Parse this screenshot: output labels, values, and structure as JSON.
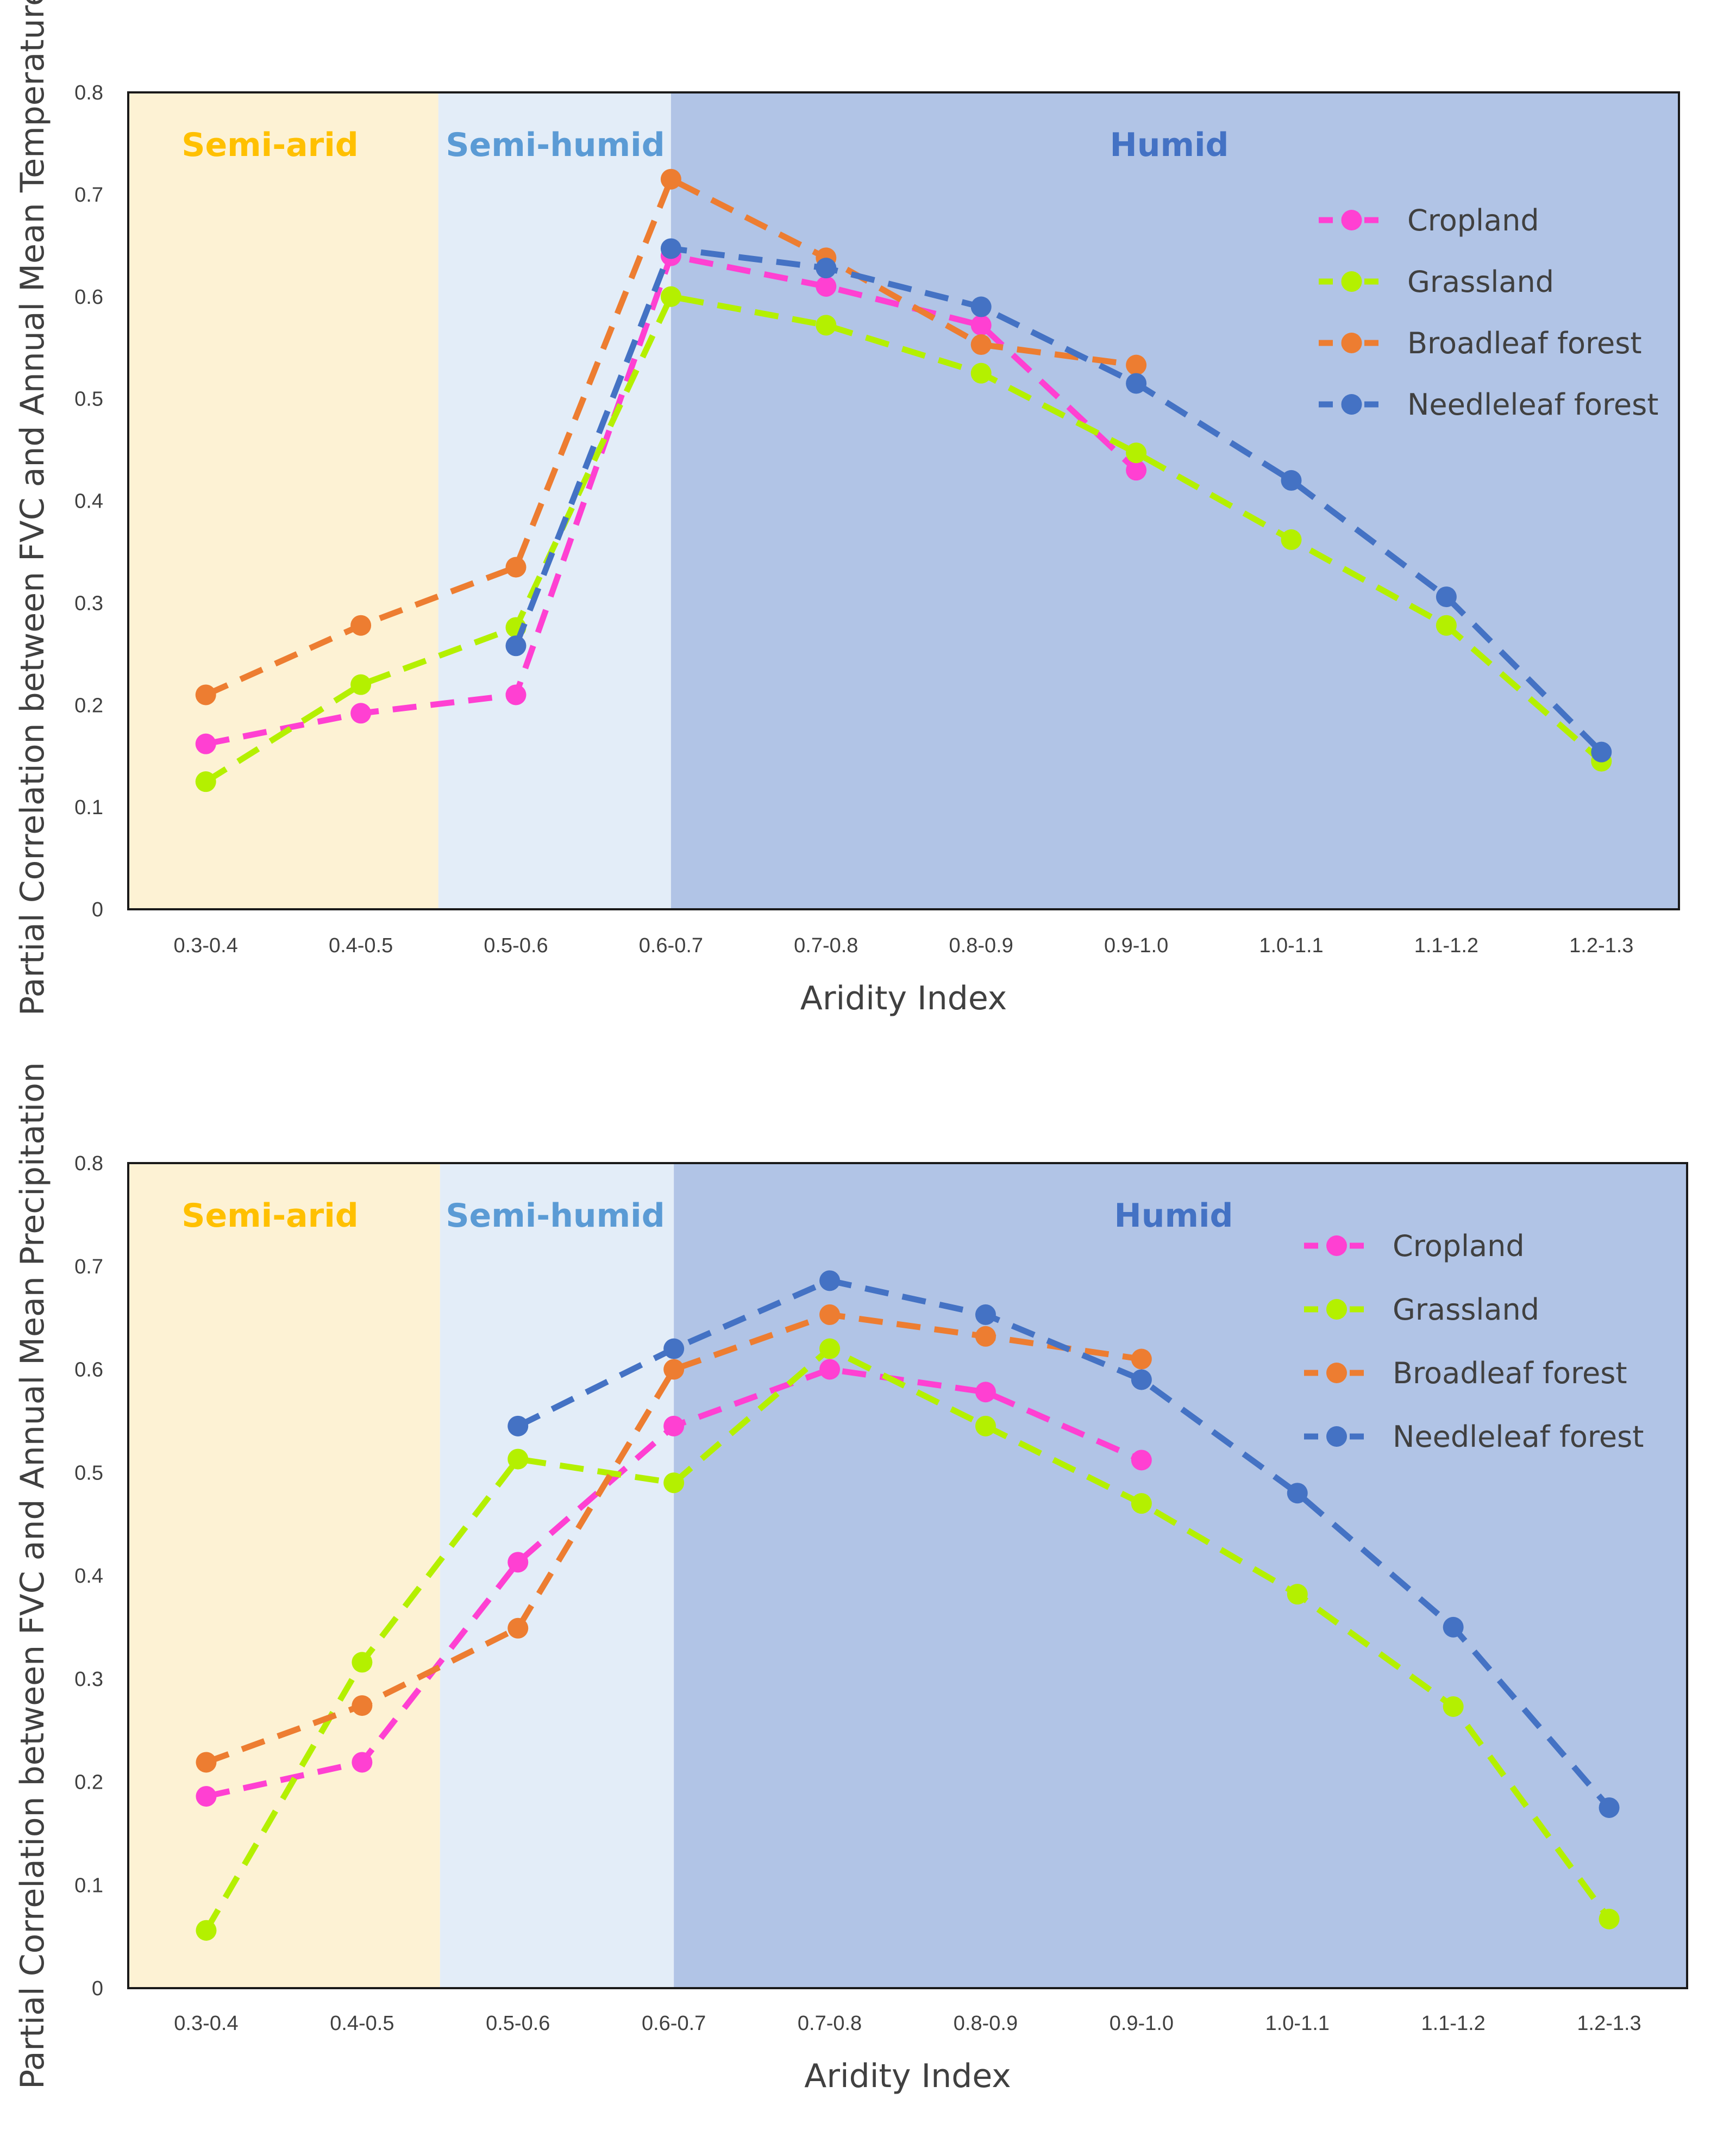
{
  "chart_data": [
    {
      "type": "line",
      "title": "",
      "xlabel": "Aridity Index",
      "ylabel": "Partial Correlation between FVC and Annual Mean Temperature",
      "ylim": [
        0,
        0.8
      ],
      "yticks": [
        "0",
        "0.1",
        "0.2",
        "0.3",
        "0.4",
        "0.5",
        "0.6",
        "0.7",
        "0.8"
      ],
      "categories": [
        "0.3-0.4",
        "0.4-0.5",
        "0.5-0.6",
        "0.6-0.7",
        "0.7-0.8",
        "0.8-0.9",
        "0.9-1.0",
        "1.0-1.1",
        "1.1-1.2",
        "1.2-1.3"
      ],
      "zones": [
        {
          "label": "Semi-arid",
          "from": -0.5,
          "to": 1.5,
          "fill": "#fdf2d4",
          "label_color": "#ffc000"
        },
        {
          "label": "Semi-humid",
          "from": 1.5,
          "to": 3.0,
          "fill": "#e3edf8",
          "label_color": "#5b9bd5"
        },
        {
          "label": "Humid",
          "from": 3.0,
          "to": 9.5,
          "fill": "#b1c4e6",
          "label_color": "#4472c4"
        }
      ],
      "legend_position": "top-right",
      "series": [
        {
          "name": "Cropland",
          "color": "#ff40d2",
          "values": [
            0.162,
            0.192,
            0.21,
            0.64,
            0.61,
            0.572,
            0.43,
            null,
            null,
            null
          ]
        },
        {
          "name": "Grassland",
          "color": "#b4f000",
          "values": [
            0.125,
            0.22,
            0.276,
            0.6,
            0.572,
            0.525,
            0.447,
            0.362,
            0.278,
            0.145
          ]
        },
        {
          "name": "Broadleaf forest",
          "color": "#ed7d31",
          "values": [
            0.21,
            0.278,
            0.335,
            0.715,
            0.638,
            0.553,
            0.533,
            null,
            null,
            null
          ]
        },
        {
          "name": "Needleleaf forest",
          "color": "#4472c4",
          "values": [
            null,
            null,
            0.258,
            0.647,
            0.628,
            0.59,
            0.515,
            0.42,
            0.306,
            0.154
          ]
        }
      ]
    },
    {
      "type": "line",
      "title": "",
      "xlabel": "Aridity Index",
      "ylabel": "Partial Correlation between FVC and Annual Mean Precipitation",
      "ylim": [
        0,
        0.8
      ],
      "yticks": [
        "0",
        "0.1",
        "0.2",
        "0.3",
        "0.4",
        "0.5",
        "0.6",
        "0.7",
        "0.8"
      ],
      "categories": [
        "0.3-0.4",
        "0.4-0.5",
        "0.5-0.6",
        "0.6-0.7",
        "0.7-0.8",
        "0.8-0.9",
        "0.9-1.0",
        "1.0-1.1",
        "1.1-1.2",
        "1.2-1.3"
      ],
      "zones": [
        {
          "label": "Semi-arid",
          "from": -0.5,
          "to": 1.5,
          "fill": "#fdf2d4",
          "label_color": "#ffc000"
        },
        {
          "label": "Semi-humid",
          "from": 1.5,
          "to": 3.0,
          "fill": "#e3edf8",
          "label_color": "#5b9bd5"
        },
        {
          "label": "Humid",
          "from": 3.0,
          "to": 9.5,
          "fill": "#b1c4e6",
          "label_color": "#4472c4"
        }
      ],
      "legend_position": "top-right",
      "series": [
        {
          "name": "Cropland",
          "color": "#ff40d2",
          "values": [
            0.186,
            0.219,
            0.413,
            0.545,
            0.6,
            0.578,
            0.512,
            null,
            null,
            null
          ]
        },
        {
          "name": "Grassland",
          "color": "#b4f000",
          "values": [
            0.056,
            0.316,
            0.513,
            0.49,
            0.62,
            0.545,
            0.47,
            0.382,
            0.273,
            0.067
          ]
        },
        {
          "name": "Broadleaf forest",
          "color": "#ed7d31",
          "values": [
            0.219,
            0.274,
            0.349,
            0.6,
            0.653,
            0.632,
            0.61,
            null,
            null,
            null
          ]
        },
        {
          "name": "Needleleaf forest",
          "color": "#4472c4",
          "values": [
            null,
            null,
            0.545,
            0.62,
            0.686,
            0.653,
            0.59,
            0.48,
            0.35,
            0.175
          ]
        }
      ]
    }
  ]
}
